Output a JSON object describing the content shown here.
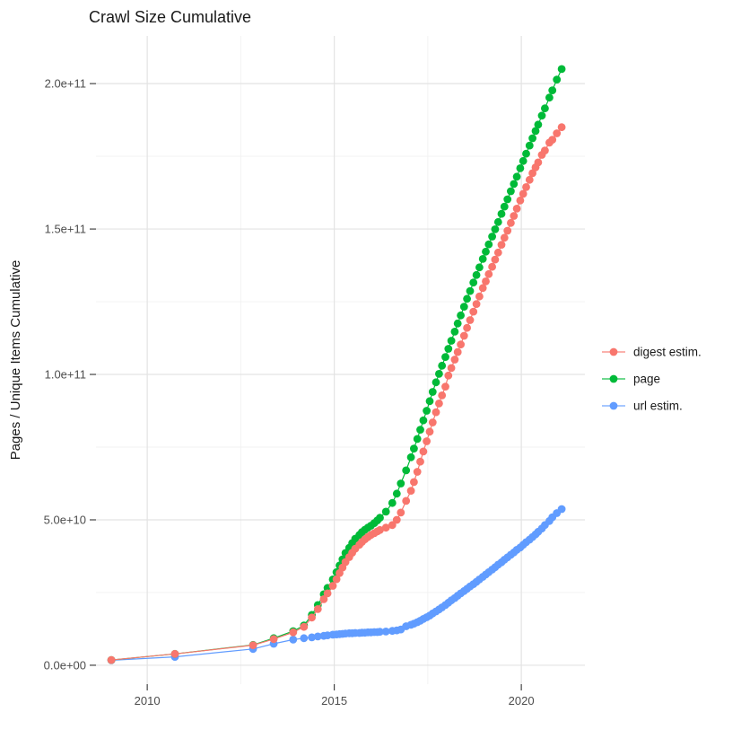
{
  "title": "Crawl Size Cumulative",
  "colors": {
    "digest_estim": "#F8766D",
    "page": "#00BA38",
    "url_estim": "#619CFF",
    "grid_major": "#E3E3E3",
    "grid_minor": "#F1F1F1",
    "tick_mark": "#333333",
    "tick_label": "#4D4D4D",
    "text": "#1A1A1A",
    "background": "#FFFFFF"
  },
  "chart_data": {
    "type": "scatter",
    "title": "Crawl Size Cumulative",
    "xlabel": "",
    "ylabel": "Pages / Unique Items Cumulative",
    "x_unit": "decimal_year",
    "values_unit": "billions (1e9 items)",
    "grid": true,
    "legend_position": "right",
    "xlim": [
      2008.63,
      2021.7
    ],
    "ylim_billions": [
      -6.5,
      216.4
    ],
    "x_ticks": [
      {
        "v": 2010,
        "label": "2010"
      },
      {
        "v": 2015,
        "label": "2015"
      },
      {
        "v": 2020,
        "label": "2020"
      }
    ],
    "x_minor": [
      2012.5,
      2017.5
    ],
    "y_ticks": [
      {
        "v": 0,
        "label": "0.0e+00"
      },
      {
        "v": 50,
        "label": "5.0e+10"
      },
      {
        "v": 100,
        "label": "1.0e+11"
      },
      {
        "v": 150,
        "label": "1.5e+11"
      },
      {
        "v": 200,
        "label": "2.0e+11"
      }
    ],
    "y_minor_billions": [
      25,
      75,
      125,
      175
    ],
    "x": [
      2009.04,
      2010.74,
      2012.83,
      2013.38,
      2013.9,
      2014.19,
      2014.4,
      2014.56,
      2014.72,
      2014.82,
      2014.96,
      2015.06,
      2015.14,
      2015.22,
      2015.3,
      2015.4,
      2015.48,
      2015.56,
      2015.67,
      2015.74,
      2015.82,
      2015.9,
      2015.98,
      2016.07,
      2016.15,
      2016.22,
      2016.38,
      2016.55,
      2016.67,
      2016.78,
      2016.92,
      2017.05,
      2017.13,
      2017.22,
      2017.3,
      2017.38,
      2017.47,
      2017.55,
      2017.63,
      2017.72,
      2017.8,
      2017.88,
      2017.97,
      2018.05,
      2018.13,
      2018.22,
      2018.3,
      2018.38,
      2018.47,
      2018.55,
      2018.63,
      2018.72,
      2018.8,
      2018.88,
      2018.97,
      2019.05,
      2019.13,
      2019.22,
      2019.3,
      2019.38,
      2019.47,
      2019.55,
      2019.63,
      2019.72,
      2019.8,
      2019.88,
      2019.97,
      2020.05,
      2020.13,
      2020.22,
      2020.3,
      2020.38,
      2020.45,
      2020.55,
      2020.63,
      2020.75,
      2020.83,
      2020.95,
      2021.08
    ],
    "series": [
      {
        "name": "digest estim.",
        "color": "#F8766D",
        "values_billions": [
          1.8,
          3.9,
          6.9,
          9,
          11.3,
          13.2,
          16.4,
          19.3,
          22.7,
          24.7,
          27.3,
          29.6,
          31.7,
          33.6,
          35.5,
          37.2,
          38.7,
          40.1,
          41.4,
          42.4,
          43.3,
          44.1,
          44.8,
          45.4,
          46,
          46.5,
          47.3,
          48.2,
          50,
          52.5,
          56.5,
          60,
          63,
          66.5,
          70,
          73.5,
          77,
          80.3,
          83.5,
          87,
          90,
          92.8,
          95.8,
          99.6,
          102.2,
          105.1,
          107.7,
          110.3,
          113.3,
          116,
          118.7,
          121.6,
          124.2,
          126.8,
          129.7,
          132,
          134.5,
          137,
          139.5,
          141.9,
          144.6,
          147,
          149.4,
          152.1,
          154.5,
          157,
          159.8,
          162.1,
          164.4,
          166.9,
          169.2,
          171.2,
          172.9,
          175.5,
          177,
          179.7,
          180.7,
          182.9,
          185
        ]
      },
      {
        "name": "page",
        "color": "#00BA38",
        "values_billions": [
          1.8,
          3.9,
          7,
          9.3,
          11.7,
          13.7,
          17.3,
          20.7,
          24.4,
          26.6,
          29.5,
          32,
          34.3,
          36.4,
          38.6,
          40.4,
          42,
          43.5,
          44.8,
          45.8,
          46.6,
          47.3,
          48,
          48.9,
          49.8,
          50.7,
          52.8,
          55.8,
          59,
          62.5,
          67,
          71.5,
          74.5,
          77.8,
          81,
          84.2,
          87.5,
          90.8,
          94,
          97.3,
          100.2,
          103,
          106,
          108.8,
          111.6,
          114.7,
          117.5,
          120.3,
          123.3,
          126,
          128.7,
          131.6,
          134.2,
          136.8,
          139.7,
          142.2,
          144.7,
          147.4,
          149.9,
          152.4,
          155.2,
          157.7,
          160.2,
          163,
          165.5,
          168,
          170.9,
          173.4,
          175.9,
          178.7,
          181.2,
          183.7,
          185.9,
          189,
          191.5,
          195.2,
          197.7,
          201.4,
          205
        ]
      },
      {
        "name": "url estim.",
        "color": "#619CFF",
        "values_billions": [
          1.7,
          2.9,
          5.6,
          7.4,
          8.8,
          9.3,
          9.6,
          9.9,
          10.1,
          10.3,
          10.5,
          10.6,
          10.7,
          10.8,
          10.9,
          11,
          11,
          11.1,
          11.1,
          11.2,
          11.2,
          11.3,
          11.3,
          11.4,
          11.4,
          11.5,
          11.6,
          11.8,
          12,
          12.3,
          13.4,
          13.9,
          14.3,
          14.8,
          15.3,
          15.9,
          16.5,
          17.1,
          17.8,
          18.5,
          19.2,
          19.9,
          20.7,
          21.5,
          22.3,
          23.1,
          23.9,
          24.7,
          25.5,
          26.3,
          27.1,
          27.9,
          28.7,
          29.5,
          30.4,
          31.2,
          32,
          32.9,
          33.7,
          34.6,
          35.4,
          36.3,
          37.1,
          38,
          38.8,
          39.7,
          40.5,
          41.4,
          42.3,
          43.2,
          44.1,
          45,
          45.9,
          47,
          48.2,
          49.6,
          50.9,
          52.3,
          53.7
        ]
      }
    ],
    "draw_order": [
      "url estim.",
      "page",
      "digest estim."
    ]
  }
}
